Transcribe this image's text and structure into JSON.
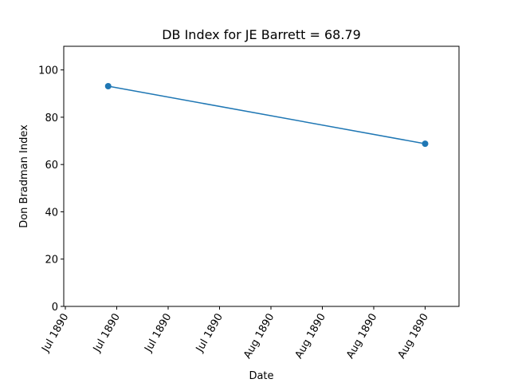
{
  "chart_data": {
    "type": "line",
    "title": "DB Index for JE Barrett = 68.79",
    "xlabel": "Date",
    "ylabel": "Don Bradman Index",
    "x_tick_labels": [
      "Jul 1890",
      "Jul 1890",
      "Jul 1890",
      "Jul 1890",
      "Aug 1890",
      "Aug 1890",
      "Aug 1890",
      "Aug 1890"
    ],
    "y_ticks": [
      0,
      20,
      40,
      60,
      80,
      100
    ],
    "ylim": [
      0,
      110
    ],
    "grid": false,
    "legend": "none",
    "series": [
      {
        "color": "#1f77b4",
        "x": [
          "1890-07-14",
          "1890-08-20"
        ],
        "y": [
          93.13,
          68.79
        ]
      }
    ]
  }
}
